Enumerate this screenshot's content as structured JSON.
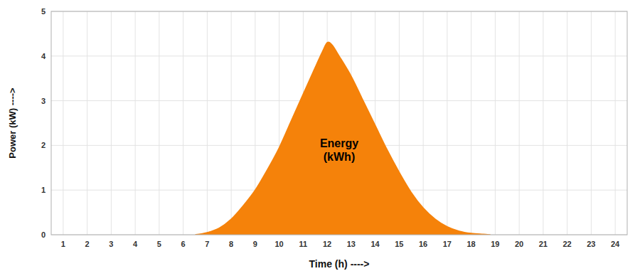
{
  "chart_data": {
    "type": "area",
    "xlabel": "Time (h) ---->",
    "ylabel": "Power (kW) ---->",
    "x": [
      6.5,
      7.0,
      7.5,
      8.0,
      8.5,
      9.0,
      9.5,
      10.0,
      10.5,
      11.0,
      11.5,
      11.8,
      12.0,
      12.2,
      12.5,
      13.0,
      13.5,
      14.0,
      14.5,
      15.0,
      15.5,
      16.0,
      16.5,
      17.0,
      17.5,
      18.0,
      18.5,
      18.8
    ],
    "values": [
      0.0,
      0.05,
      0.15,
      0.35,
      0.65,
      1.0,
      1.45,
      1.95,
      2.55,
      3.15,
      3.75,
      4.1,
      4.3,
      4.25,
      4.0,
      3.55,
      3.0,
      2.45,
      1.9,
      1.4,
      0.95,
      0.6,
      0.35,
      0.18,
      0.08,
      0.03,
      0.01,
      0.0
    ],
    "color": "#F5820A",
    "xlim": [
      0.5,
      24.5
    ],
    "ylim": [
      0,
      5
    ],
    "xticks": [
      1,
      2,
      3,
      4,
      5,
      6,
      7,
      8,
      9,
      10,
      11,
      12,
      13,
      14,
      15,
      16,
      17,
      18,
      19,
      20,
      21,
      22,
      23,
      24
    ],
    "yticks": [
      0,
      1,
      2,
      3,
      4,
      5
    ],
    "annotations": [
      {
        "text": "Energy\n(kWh)",
        "x": 12.5,
        "y": 1.9
      }
    ],
    "grid": true
  }
}
